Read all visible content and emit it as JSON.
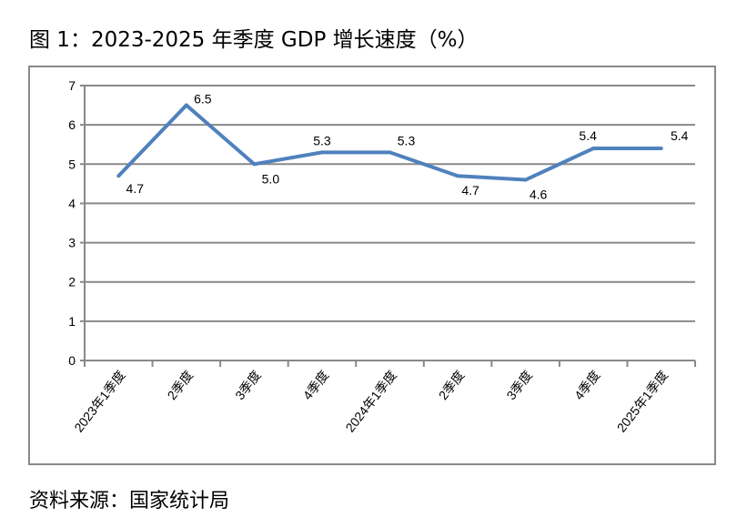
{
  "chart_data": {
    "type": "line",
    "title": "图 1：2023-2025 年季度 GDP 增长速度（%）",
    "source": "资料来源：国家统计局",
    "categories": [
      "2023年1季度",
      "2季度",
      "3季度",
      "4季度",
      "2024年1季度",
      "2季度",
      "3季度",
      "4季度",
      "2025年1季度"
    ],
    "values": [
      4.7,
      6.5,
      5.0,
      5.3,
      5.3,
      4.7,
      4.6,
      5.4,
      5.4
    ],
    "data_labels": [
      "4.7",
      "6.5",
      "5.0",
      "5.3",
      "5.3",
      "4.7",
      "4.6",
      "5.4",
      "5.4"
    ],
    "ylim": [
      0,
      7
    ],
    "yticks": [
      "0",
      "1",
      "2",
      "3",
      "4",
      "5",
      "6",
      "7"
    ],
    "grid": true,
    "line_color": "#4F81BD",
    "xlabel": "",
    "ylabel": ""
  }
}
